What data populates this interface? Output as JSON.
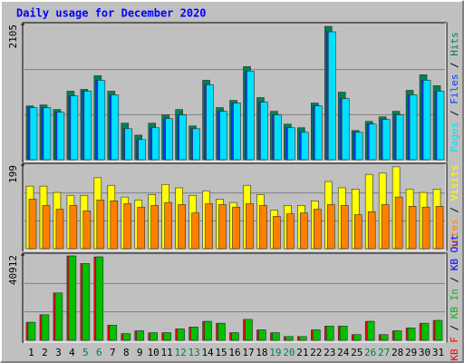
{
  "chart_data": [
    {
      "type": "bar",
      "title": "Daily usage for December 2020",
      "legend_separator": " / ",
      "legend_reversed": true,
      "ylim": [
        0,
        2105
      ],
      "yticks": [
        2105
      ],
      "series": [
        {
          "name": "Pages",
          "color": "#00e0ff",
          "values": [
            811,
            811,
            739,
            995,
            1067,
            1237,
            1010,
            483,
            313,
            498,
            640,
            697,
            483,
            1166,
            754,
            882,
            1379,
            896,
            697,
            498,
            427,
            839,
            1991,
            953,
            427,
            555,
            626,
            697,
            1010,
            1237,
            1067
          ]
        },
        {
          "name": "Files",
          "color": "#0040ff",
          "values": [
            811,
            811,
            739,
            995,
            1067,
            1237,
            1010,
            483,
            313,
            498,
            640,
            697,
            483,
            1166,
            754,
            882,
            1379,
            896,
            697,
            498,
            427,
            839,
            1991,
            953,
            427,
            555,
            626,
            697,
            1010,
            1237,
            1067
          ]
        },
        {
          "name": "Hits",
          "color": "#00805c",
          "values": [
            839,
            853,
            782,
            1067,
            1095,
            1308,
            1067,
            569,
            384,
            569,
            697,
            782,
            526,
            1237,
            811,
            924,
            1450,
            967,
            754,
            555,
            498,
            882,
            2076,
            1052,
            455,
            597,
            668,
            754,
            1081,
            1323,
            1152
          ]
        }
      ]
    },
    {
      "type": "bar",
      "legend_separator": " / ",
      "legend_reversed": true,
      "ylim": [
        0,
        199
      ],
      "yticks": [
        199
      ],
      "series": [
        {
          "name": "Sites",
          "color": "#ff8000",
          "values": [
            118,
            103,
            94,
            103,
            90,
            116,
            114,
            107,
            99,
            103,
            110,
            105,
            85,
            107,
            105,
            99,
            107,
            103,
            77,
            83,
            85,
            94,
            105,
            103,
            81,
            88,
            105,
            123,
            101,
            99,
            101
          ]
        },
        {
          "name": "Visits",
          "color": "#ffff00",
          "values": [
            149,
            149,
            134,
            127,
            127,
            169,
            151,
            123,
            116,
            129,
            153,
            145,
            127,
            138,
            118,
            110,
            151,
            129,
            92,
            103,
            103,
            114,
            160,
            145,
            142,
            177,
            180,
            195,
            142,
            134,
            142
          ]
        }
      ]
    },
    {
      "type": "bar",
      "legend_separator": " / ",
      "legend_reversed": false,
      "ylim": [
        0,
        40912
      ],
      "yticks": [
        40912
      ],
      "categories": [
        1,
        2,
        3,
        4,
        5,
        6,
        7,
        8,
        9,
        10,
        11,
        12,
        13,
        14,
        15,
        16,
        17,
        18,
        19,
        20,
        21,
        22,
        23,
        24,
        25,
        26,
        27,
        28,
        29,
        30,
        31
      ],
      "weekends": [
        5,
        6,
        12,
        13,
        19,
        20,
        26,
        27
      ],
      "weekend_color": "#008040",
      "weekday_color": "#000000",
      "series": [
        {
          "name": "KB F",
          "color": "#ff0000",
          "values": [
            8637,
            12274,
            22730,
            40459,
            36823,
            40005,
            7274,
            3182,
            4546,
            3637,
            3637,
            5455,
            6364,
            9092,
            8183,
            3637,
            10001,
            5001,
            3637,
            1818,
            1818,
            5001,
            6819,
            6819,
            2728,
            9092,
            2728,
            4546,
            5910,
            8183,
            9547
          ]
        },
        {
          "name": "KB In",
          "color": "#00c000",
          "values": [
            8637,
            12274,
            22730,
            40459,
            36823,
            40005,
            7274,
            3182,
            4546,
            3637,
            3637,
            5455,
            6364,
            9092,
            8183,
            3637,
            10001,
            5001,
            3637,
            1818,
            1818,
            5001,
            6819,
            6819,
            2728,
            9092,
            2728,
            4546,
            5910,
            8183,
            9547
          ]
        },
        {
          "name": "KB Out",
          "color": "#0000ff",
          "values": [
            0,
            0,
            0,
            0,
            0,
            0,
            0,
            0,
            0,
            0,
            0,
            0,
            0,
            0,
            0,
            0,
            0,
            0,
            0,
            0,
            0,
            0,
            0,
            0,
            0,
            0,
            0,
            0,
            0,
            0,
            0
          ]
        }
      ]
    }
  ]
}
